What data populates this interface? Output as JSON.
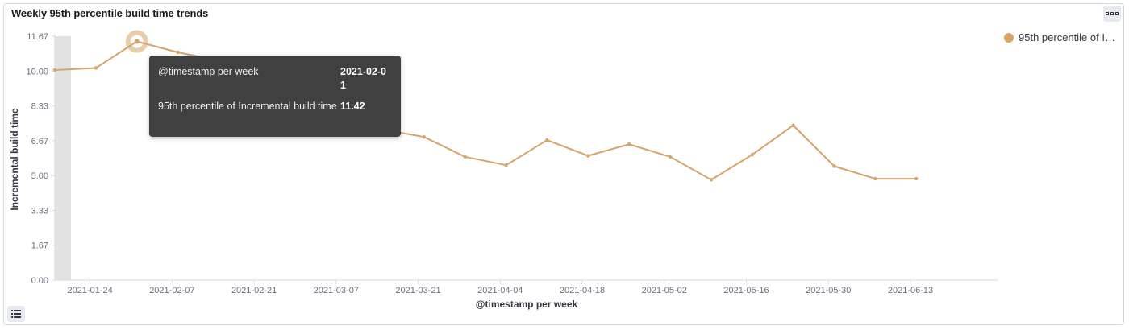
{
  "panel": {
    "title": "Weekly 95th percentile build time trends"
  },
  "icons": {
    "menu": "panel-options-icon",
    "legend_toggle": "legend-list-icon"
  },
  "colors": {
    "series": "#d6a46a",
    "tooltip_bg": "#404040",
    "grid_axis": "#d3dae6"
  },
  "legend": {
    "label": "95th percentile of In..."
  },
  "tooltip": {
    "x_label": "@timestamp per week",
    "x_value": "2021-02-01",
    "y_label": "95th percentile of Incremental build time",
    "y_value": "11.42"
  },
  "chart_data": {
    "type": "line",
    "xlabel": "@timestamp per week",
    "ylabel": "Incremental build time",
    "yticks": [
      "0.00",
      "1.67",
      "3.33",
      "5.00",
      "6.67",
      "8.33",
      "10.00",
      "11.67"
    ],
    "ylim": [
      0,
      11.67
    ],
    "xticks": [
      "2021-01-24",
      "2021-02-07",
      "2021-02-21",
      "2021-03-07",
      "2021-03-21",
      "2021-04-04",
      "2021-04-18",
      "2021-05-02",
      "2021-05-16",
      "2021-05-30",
      "2021-06-13"
    ],
    "xlim": [
      "2021-01-18",
      "2021-06-28"
    ],
    "legend_position": "right",
    "grid": false,
    "series": [
      {
        "name": "95th percentile of Incremental build time",
        "x": [
          "2021-01-18",
          "2021-01-25",
          "2021-02-01",
          "2021-02-08",
          "2021-02-15",
          "2021-02-22",
          "2021-03-01",
          "2021-03-08",
          "2021-03-15",
          "2021-03-22",
          "2021-03-29",
          "2021-04-05",
          "2021-04-12",
          "2021-04-19",
          "2021-04-26",
          "2021-05-03",
          "2021-05-10",
          "2021-05-17",
          "2021-05-24",
          "2021-05-31",
          "2021-06-07",
          "2021-06-14"
        ],
        "y": [
          10.05,
          10.15,
          11.42,
          10.9,
          10.5,
          10.1,
          9.7,
          9.4,
          7.2,
          6.85,
          5.9,
          5.5,
          6.7,
          5.95,
          6.5,
          5.9,
          4.8,
          6.0,
          7.4,
          5.45,
          4.85,
          4.85
        ]
      }
    ],
    "highlight": {
      "x": "2021-02-01",
      "y": 11.42
    }
  }
}
